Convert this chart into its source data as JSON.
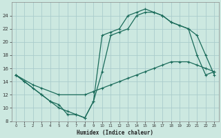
{
  "xlabel": "Humidex (Indice chaleur)",
  "bg_color": "#cce8e0",
  "grid_color": "#aacccc",
  "line_color": "#1a6b5a",
  "xlim": [
    -0.5,
    23.5
  ],
  "ylim": [
    8,
    26
  ],
  "xticks": [
    0,
    1,
    2,
    3,
    4,
    5,
    6,
    7,
    8,
    9,
    10,
    11,
    12,
    13,
    14,
    15,
    16,
    17,
    18,
    19,
    20,
    21,
    22,
    23
  ],
  "yticks": [
    8,
    10,
    12,
    14,
    16,
    18,
    20,
    22,
    24
  ],
  "line1_x": [
    0,
    1,
    2,
    3,
    4,
    5,
    6,
    7,
    8,
    9,
    10,
    11,
    12,
    13,
    14,
    15,
    16,
    17,
    18,
    19,
    20,
    21,
    22,
    23
  ],
  "line1_y": [
    15,
    14,
    13,
    12,
    11,
    10.5,
    9,
    9,
    8.5,
    11,
    21,
    21.5,
    22,
    24,
    24.5,
    25,
    24.5,
    24,
    23,
    22.5,
    22,
    21,
    18,
    15
  ],
  "line2_x": [
    0,
    2,
    3,
    5,
    8,
    9,
    10,
    11,
    12,
    13,
    14,
    15,
    16,
    17,
    18,
    19,
    20,
    21,
    22,
    23
  ],
  "line2_y": [
    15,
    13.5,
    13,
    12,
    12,
    12.5,
    13,
    13.5,
    14,
    14.5,
    15,
    15.5,
    16,
    16.5,
    17,
    17,
    17,
    16.5,
    16,
    15.5
  ],
  "line3_x": [
    0,
    1,
    3,
    4,
    5,
    6,
    7,
    8,
    9,
    10,
    11,
    12,
    13,
    14,
    15,
    16,
    17,
    18,
    19,
    20,
    21,
    22,
    23
  ],
  "line3_y": [
    15,
    14,
    12,
    11,
    10,
    9.5,
    9,
    8.5,
    11,
    15.5,
    21,
    21.5,
    22,
    24,
    24.5,
    24.5,
    24,
    23,
    22.5,
    22,
    18,
    15,
    15.5
  ]
}
